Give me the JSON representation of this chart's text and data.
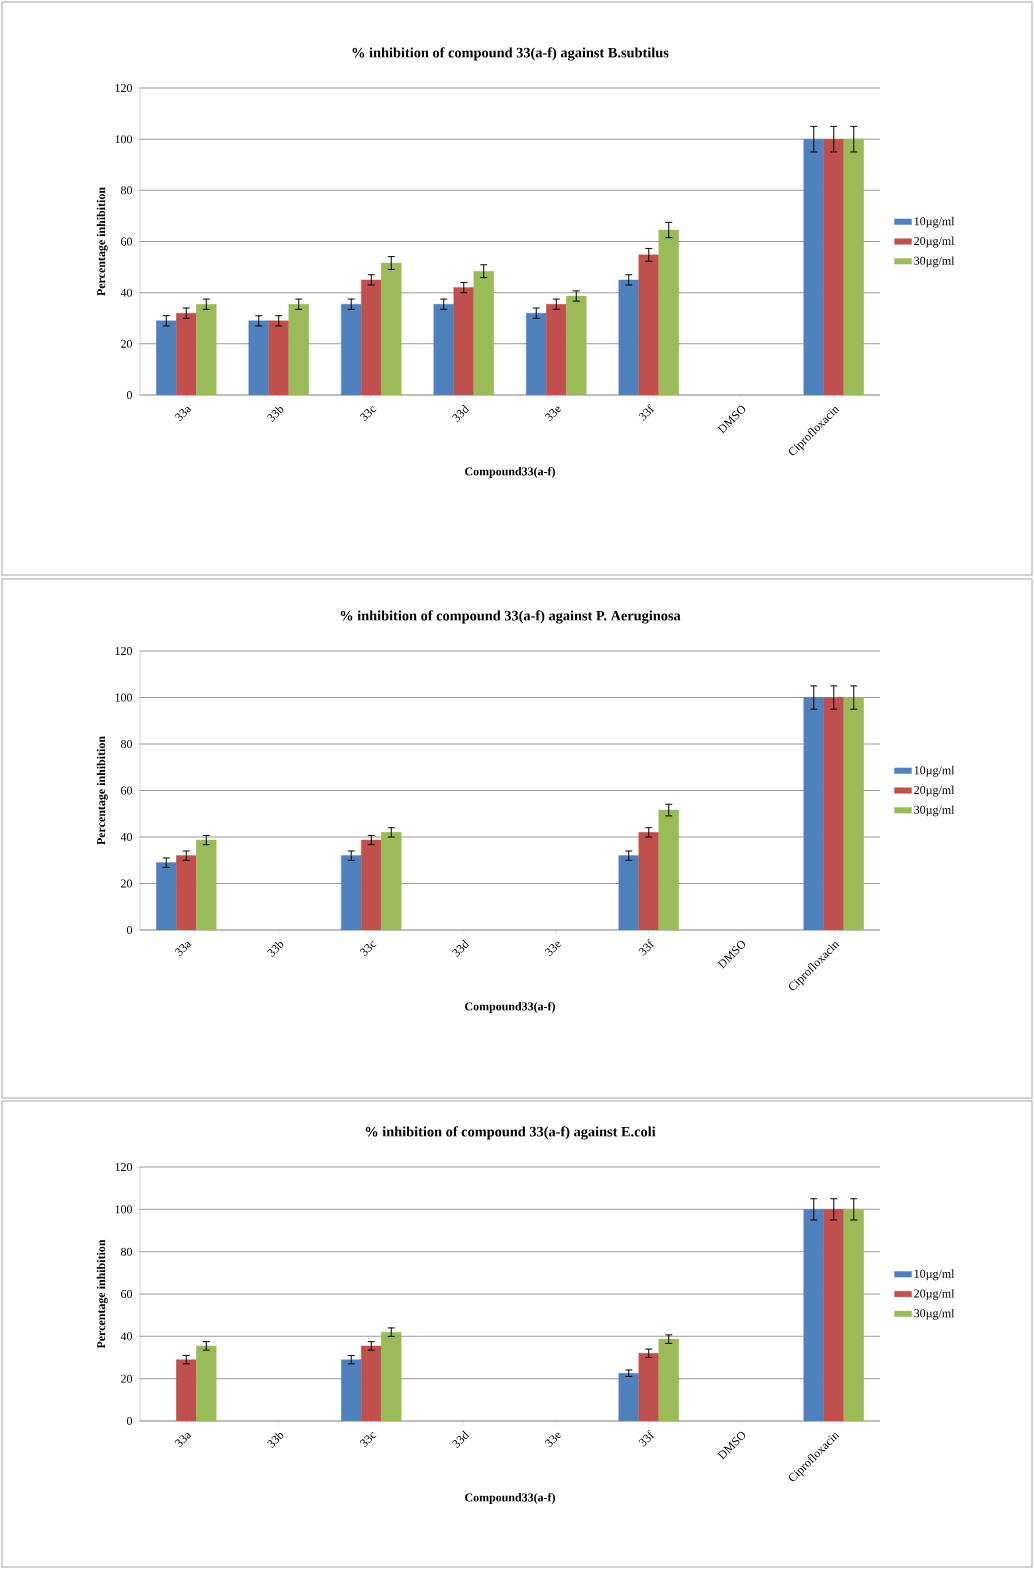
{
  "chart_data": [
    {
      "type": "bar",
      "title": "% inhibition of compound 33(a-f) against B.subtilus",
      "xlabel": "Compound33(a-f)",
      "ylabel": "Percentage inhibition",
      "categories": [
        "33a",
        "33b",
        "33c",
        "33d",
        "33e",
        "33f",
        "DMSO",
        "Ciprofloxacin"
      ],
      "ylim": [
        0,
        120
      ],
      "yticks": [
        0,
        20,
        40,
        60,
        80,
        100,
        120
      ],
      "grid": "y",
      "legend": "right",
      "series": [
        {
          "name": "10µg/ml",
          "color": "#4f81bd",
          "values": [
            29,
            29,
            35.5,
            35.5,
            32,
            45,
            null,
            100
          ],
          "errors": [
            2,
            2,
            2,
            2,
            2,
            2,
            null,
            5
          ]
        },
        {
          "name": "20µg/ml",
          "color": "#c0504d",
          "values": [
            32,
            29,
            45,
            42,
            35.5,
            54.8,
            null,
            100
          ],
          "errors": [
            2,
            2,
            2,
            2,
            2,
            2.5,
            null,
            5
          ]
        },
        {
          "name": "30µg/ml",
          "color": "#9bbb59",
          "values": [
            35.5,
            35.5,
            51.6,
            48.4,
            38.7,
            64.5,
            null,
            100
          ],
          "errors": [
            2,
            2,
            2.5,
            2.5,
            2,
            3,
            null,
            5
          ]
        }
      ]
    },
    {
      "type": "bar",
      "title": "% inhibition of compound 33(a-f) against P. Aeruginosa",
      "xlabel": "Compound33(a-f)",
      "ylabel": "Percentage inhibition",
      "categories": [
        "33a",
        "33b",
        "33c",
        "33d",
        "33e",
        "33f",
        "DMSO",
        "Ciprofloxacin"
      ],
      "ylim": [
        0,
        120
      ],
      "yticks": [
        0,
        20,
        40,
        60,
        80,
        100,
        120
      ],
      "grid": "y",
      "legend": "right",
      "series": [
        {
          "name": "10µg/ml",
          "color": "#4f81bd",
          "values": [
            29,
            null,
            32,
            null,
            null,
            32,
            null,
            100
          ],
          "errors": [
            2,
            null,
            2,
            null,
            null,
            2,
            null,
            5
          ]
        },
        {
          "name": "20µg/ml",
          "color": "#c0504d",
          "values": [
            32,
            null,
            38.7,
            null,
            null,
            42,
            null,
            100
          ],
          "errors": [
            2,
            null,
            2,
            null,
            null,
            2,
            null,
            5
          ]
        },
        {
          "name": "30µg/ml",
          "color": "#9bbb59",
          "values": [
            38.7,
            null,
            42,
            null,
            null,
            51.6,
            null,
            100
          ],
          "errors": [
            2,
            null,
            2,
            null,
            null,
            2.5,
            null,
            5
          ]
        }
      ]
    },
    {
      "type": "bar",
      "title": "% inhibition of compound 33(a-f) against E.coli",
      "xlabel": "Compound33(a-f)",
      "ylabel": "Percentage inhibition",
      "categories": [
        "33a",
        "33b",
        "33c",
        "33d",
        "33e",
        "33f",
        "DMSO",
        "Ciprofloxacin"
      ],
      "ylim": [
        0,
        120
      ],
      "yticks": [
        0,
        20,
        40,
        60,
        80,
        100,
        120
      ],
      "grid": "y",
      "legend": "right",
      "series": [
        {
          "name": "10µg/ml",
          "color": "#4f81bd",
          "values": [
            null,
            null,
            29,
            null,
            null,
            22.6,
            null,
            100
          ],
          "errors": [
            null,
            null,
            2,
            null,
            null,
            1.5,
            null,
            5
          ]
        },
        {
          "name": "20µg/ml",
          "color": "#c0504d",
          "values": [
            29,
            null,
            35.5,
            null,
            null,
            32,
            null,
            100
          ],
          "errors": [
            2,
            null,
            2,
            null,
            null,
            2,
            null,
            5
          ]
        },
        {
          "name": "30µg/ml",
          "color": "#9bbb59",
          "values": [
            35.5,
            null,
            42,
            null,
            null,
            38.7,
            null,
            100
          ],
          "errors": [
            2,
            null,
            2,
            null,
            null,
            2,
            null,
            5
          ]
        }
      ]
    }
  ]
}
